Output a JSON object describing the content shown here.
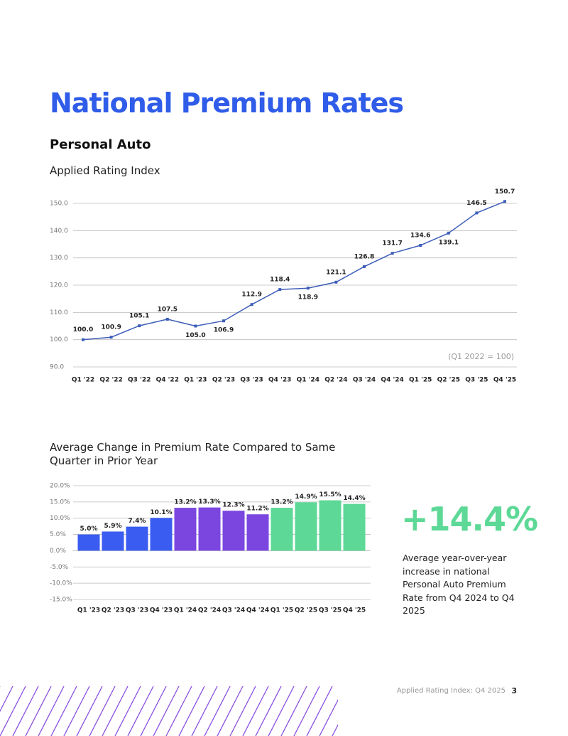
{
  "header": {
    "title": "National Premium Rates",
    "subtitle": "Personal Auto"
  },
  "chart_data": [
    {
      "type": "line",
      "title": "Applied Rating Index",
      "annotation": "(Q1 2022  = 100)",
      "categories": [
        "Q1 '22",
        "Q2 '22",
        "Q3 '22",
        "Q4 '22",
        "Q1 '23",
        "Q2 '23",
        "Q3 '23",
        "Q4 '23",
        "Q1 '24",
        "Q2 '24",
        "Q3 '24",
        "Q4 '24",
        "Q1 '25",
        "Q2 '25",
        "Q3 '25",
        "Q4 '25"
      ],
      "values": [
        100.0,
        100.9,
        105.1,
        107.5,
        105.0,
        106.9,
        112.9,
        118.4,
        118.9,
        121.1,
        126.8,
        131.7,
        134.6,
        139.1,
        146.5,
        150.7
      ],
      "value_labels": [
        "100.0",
        "100.9",
        "105.1",
        "107.5",
        "105.0",
        "106.9",
        "112.9",
        "118.4",
        "118.9",
        "121.1",
        "126.8",
        "131.7",
        "134.6",
        "139.1",
        "146.5",
        "150.7"
      ],
      "color": "#3d5db8",
      "ylim": [
        90,
        150
      ],
      "yticks": [
        {
          "value": 90,
          "label": "90.0"
        },
        {
          "value": 100,
          "label": "100.0"
        },
        {
          "value": 110,
          "label": "110.0"
        },
        {
          "value": 120,
          "label": "120.0"
        },
        {
          "value": 130,
          "label": "130.0"
        },
        {
          "value": 140,
          "label": "140.0"
        },
        {
          "value": 150,
          "label": "150.0"
        }
      ],
      "grid": true
    },
    {
      "type": "bar",
      "title": "Average Change in Premium Rate Compared to Same Quarter in Prior Year",
      "categories": [
        "Q1 '23",
        "Q2 '23",
        "Q3 '23",
        "Q4 '23",
        "Q1 '24",
        "Q2 '24",
        "Q3 '24",
        "Q4 '24",
        "Q1 '25",
        "Q2 '25",
        "Q3 '25",
        "Q4 '25"
      ],
      "values": [
        5.0,
        5.9,
        7.4,
        10.1,
        13.2,
        13.3,
        12.3,
        11.2,
        13.2,
        14.9,
        15.5,
        14.4
      ],
      "value_labels": [
        "5.0%",
        "5.9%",
        "7.4%",
        "10.1%",
        "13.2%",
        "13.3%",
        "12.3%",
        "11.2%",
        "13.2%",
        "14.9%",
        "15.5%",
        "14.4%"
      ],
      "colors": [
        "#3a5cf0",
        "#3a5cf0",
        "#3a5cf0",
        "#3a5cf0",
        "#7b46e0",
        "#7b46e0",
        "#7b46e0",
        "#7b46e0",
        "#5dd896",
        "#5dd896",
        "#5dd896",
        "#5dd896"
      ],
      "ylim": [
        -15,
        20
      ],
      "yticks": [
        {
          "value": -15,
          "label": "-15.0%"
        },
        {
          "value": -10,
          "label": "-10.0%"
        },
        {
          "value": -5,
          "label": "-5.0%"
        },
        {
          "value": 0,
          "label": "0.0%"
        },
        {
          "value": 5,
          "label": "5.0%"
        },
        {
          "value": 10,
          "label": "10.0%"
        },
        {
          "value": 15,
          "label": "15.0%"
        },
        {
          "value": 20,
          "label": "20.0%"
        }
      ],
      "grid": true
    }
  ],
  "callout": {
    "value": "+14.4%",
    "text": "Average year-over-year increase in national Personal Auto Premium Rate from Q4 2024 to Q4 2025"
  },
  "footer": {
    "text": "Applied Rating Index: Q4 2025",
    "page": "3"
  }
}
